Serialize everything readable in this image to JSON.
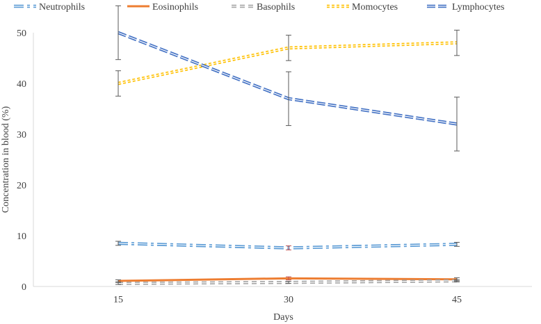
{
  "chart_data": {
    "type": "line",
    "xlabel": "Days",
    "ylabel": "Concentration in blood (%)",
    "x": [
      15,
      30,
      45
    ],
    "x_ticks": [
      "15",
      "30",
      "45"
    ],
    "y_ticks": [
      "0",
      "10",
      "20",
      "30",
      "40",
      "50"
    ],
    "ylim": [
      0,
      50
    ],
    "grid": false,
    "legend_position": "top",
    "series": [
      {
        "name": "Neutrophils",
        "values": [
          8.5,
          7.6,
          8.3
        ],
        "errors": [
          0.4,
          0.4,
          0.4
        ],
        "color": "#5B9BD5",
        "style": "dash-dot"
      },
      {
        "name": "Eosinophils",
        "values": [
          1.1,
          1.6,
          1.4
        ],
        "errors": [
          0.2,
          0.3,
          0.3
        ],
        "color": "#ED7D31",
        "style": "solid"
      },
      {
        "name": "Basophils",
        "values": [
          0.6,
          0.8,
          1.1
        ],
        "errors": [
          0.2,
          0.2,
          0.2
        ],
        "color": "#A5A5A5",
        "style": "dashed"
      },
      {
        "name": "Momocytes",
        "values": [
          40,
          47,
          48
        ],
        "errors": [
          2.5,
          2.5,
          2.5
        ],
        "color": "#FFC000",
        "style": "dotted"
      },
      {
        "name": "Lymphocytes",
        "values": [
          50,
          37,
          32
        ],
        "errors": [
          5.3,
          5.3,
          5.3
        ],
        "color": "#4472C4",
        "style": "long-dash"
      }
    ]
  }
}
